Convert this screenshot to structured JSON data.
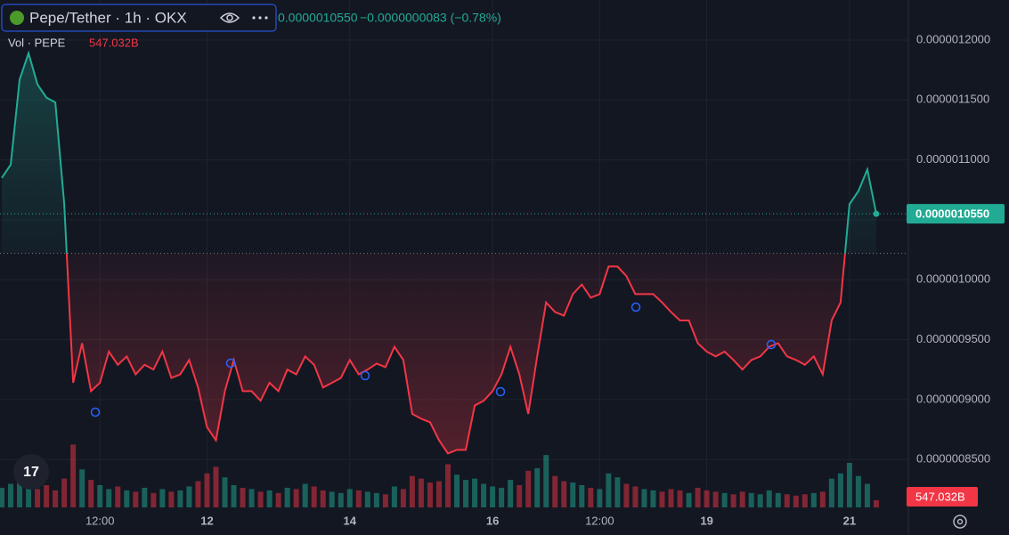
{
  "chart_data": {
    "type": "baseline",
    "symbol": "Pepe/Tether · 1h · OKX",
    "last_price": "0.0000010550",
    "change": "−0.0000000083 (−0.78%)",
    "volume_title": "Vol · PEPE",
    "volume_last_label": "547.032B",
    "price_label": "0.0000010550",
    "categories": [
      null,
      null,
      null,
      null,
      null,
      null,
      null,
      null,
      null,
      null,
      null,
      "12:00",
      null,
      null,
      null,
      null,
      null,
      null,
      null,
      null,
      null,
      null,
      null,
      "12",
      null,
      null,
      null,
      null,
      null,
      null,
      null,
      null,
      null,
      null,
      null,
      null,
      null,
      null,
      null,
      "14",
      null,
      null,
      null,
      null,
      null,
      null,
      null,
      null,
      null,
      null,
      null,
      null,
      null,
      null,
      null,
      "16",
      null,
      null,
      null,
      null,
      null,
      null,
      null,
      null,
      null,
      null,
      null,
      "12:00",
      null,
      null,
      null,
      null,
      null,
      null,
      null,
      null,
      null,
      null,
      null,
      "19",
      null,
      null,
      null,
      null,
      null,
      null,
      null,
      null,
      null,
      null,
      null,
      null,
      null,
      null,
      null,
      "21",
      null,
      null,
      null
    ],
    "series": [
      {
        "name": "Pepe/Tether",
        "up_color": "#22ab94",
        "down_color": "#f23645",
        "values": [
          1.085e-06,
          1.096e-06,
          1.167e-06,
          1.189e-06,
          1.163e-06,
          1.152e-06,
          1.148e-06,
          1.063e-06,
          9.14e-07,
          9.47e-07,
          9.07e-07,
          9.14e-07,
          9.4e-07,
          9.29e-07,
          9.36e-07,
          9.21e-07,
          9.29e-07,
          9.25e-07,
          9.4e-07,
          9.18e-07,
          9.21e-07,
          9.33e-07,
          9.1e-07,
          8.77e-07,
          8.66e-07,
          9.07e-07,
          9.33e-07,
          9.07e-07,
          9.07e-07,
          8.99e-07,
          9.14e-07,
          9.07e-07,
          9.25e-07,
          9.21e-07,
          9.36e-07,
          9.29e-07,
          9.1e-07,
          9.14e-07,
          9.18e-07,
          9.33e-07,
          9.21e-07,
          9.25e-07,
          9.3e-07,
          9.27e-07,
          9.44e-07,
          9.33e-07,
          8.88e-07,
          8.84e-07,
          8.81e-07,
          8.66e-07,
          8.55e-07,
          8.58e-07,
          8.58e-07,
          8.95e-07,
          8.99e-07,
          9.07e-07,
          9.21e-07,
          9.44e-07,
          9.21e-07,
          8.88e-07,
          9.36e-07,
          9.81e-07,
          9.73e-07,
          9.7e-07,
          9.88e-07,
          9.96e-07,
          9.85e-07,
          9.88e-07,
          1.011e-06,
          1.011e-06,
          1.003e-06,
          9.88e-07,
          9.88e-07,
          9.88e-07,
          9.81e-07,
          9.73e-07,
          9.66e-07,
          9.66e-07,
          9.47e-07,
          9.4e-07,
          9.36e-07,
          9.4e-07,
          9.33e-07,
          9.25e-07,
          9.33e-07,
          9.36e-07,
          9.44e-07,
          9.47e-07,
          9.36e-07,
          9.33e-07,
          9.29e-07,
          9.36e-07,
          9.21e-07,
          9.66e-07,
          9.81e-07,
          1.063e-06,
          1.074e-06,
          1.092e-06,
          1.055e-06
        ]
      }
    ],
    "baseline": 1.022e-06,
    "volume": [
      1500,
      1800,
      2600,
      1900,
      1400,
      1700,
      1300,
      2200,
      4800,
      2900,
      2100,
      1700,
      1400,
      1600,
      1300,
      1200,
      1500,
      1100,
      1400,
      1200,
      1300,
      1600,
      2000,
      2600,
      3100,
      2300,
      1700,
      1500,
      1400,
      1200,
      1300,
      1100,
      1500,
      1400,
      1800,
      1600,
      1300,
      1200,
      1100,
      1400,
      1300,
      1200,
      1100,
      1000,
      1600,
      1400,
      2400,
      2200,
      1900,
      2000,
      3300,
      2500,
      2100,
      2200,
      1800,
      1600,
      1500,
      2100,
      1700,
      2800,
      3000,
      4000,
      2400,
      2000,
      1900,
      1700,
      1500,
      1400,
      2600,
      2300,
      1800,
      1600,
      1400,
      1300,
      1200,
      1400,
      1300,
      1100,
      1500,
      1300,
      1200,
      1100,
      1000,
      1200,
      1100,
      1000,
      1300,
      1100,
      1000,
      900,
      1000,
      1100,
      1200,
      2200,
      2600,
      3400,
      2400,
      1800,
      547.032
    ],
    "ylim": [
      8.1e-07,
      1.2334e-06
    ],
    "yticks": [
      {
        "value": 8.5e-07,
        "label": "0.0000008500"
      },
      {
        "value": 9e-07,
        "label": "0.0000009000"
      },
      {
        "value": 9.5e-07,
        "label": "0.0000009500"
      },
      {
        "value": 1e-06,
        "label": "0.0000010000"
      },
      {
        "value": 1.05e-06,
        "label": "0.0000010500"
      },
      {
        "value": 1.1e-06,
        "label": "0.0000011000"
      },
      {
        "value": 1.15e-06,
        "label": "0.0000011500"
      },
      {
        "value": 1.2e-06,
        "label": "0.0000012000"
      }
    ],
    "grid": true
  }
}
